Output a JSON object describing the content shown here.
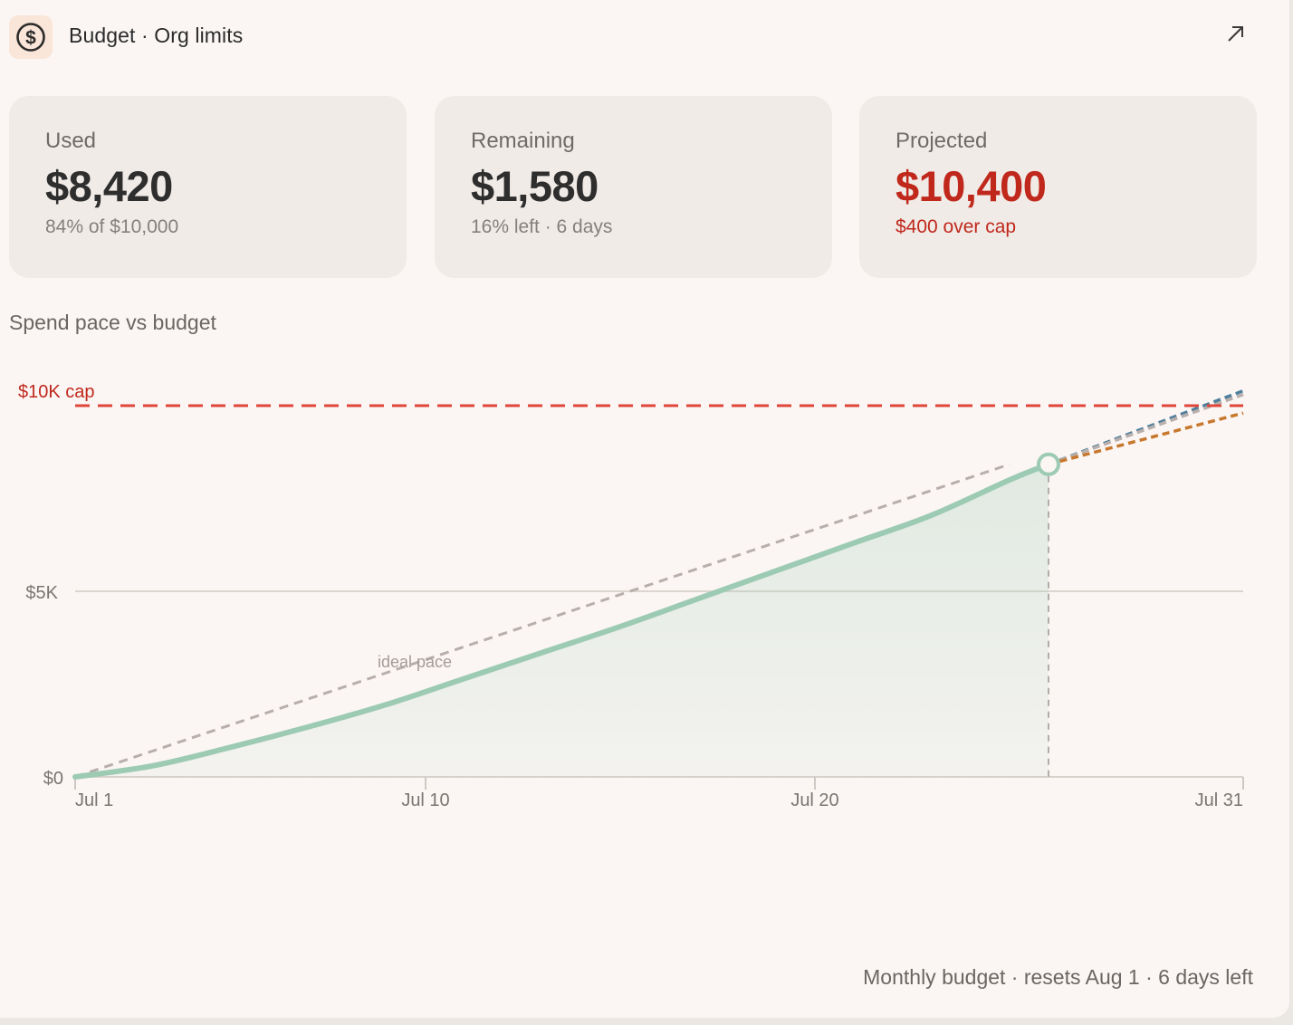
{
  "header": {
    "title": "Budget · Org limits",
    "icon": "dollar-circle-icon",
    "expand_icon": "expand-arrow-icon"
  },
  "stats": [
    {
      "label": "Used",
      "value": "$8,420",
      "sub": "84% of $10,000"
    },
    {
      "label": "Remaining",
      "value": "$1,580",
      "sub": "16% left · 6 days"
    },
    {
      "label": "Projected",
      "value": "$10,400",
      "sub": "$400 over cap"
    }
  ],
  "section_title": "Spend pace vs budget",
  "footer": "Monthly budget · resets Aug 1 · 6 days left",
  "colors": {
    "actual": "#9ccab3",
    "cap": "#e0453a",
    "ideal": "#b8afac",
    "projection_high": "#4f7f9b",
    "projection_low": "#c8782e",
    "danger": "#c0281c"
  },
  "chart_data": {
    "type": "line",
    "title": "",
    "x_ticks": [
      "Jul 1",
      "Jul 10",
      "Jul 20",
      "Jul 31"
    ],
    "y_ticks": [
      "$0",
      "$5K"
    ],
    "ylim": [
      0,
      12000
    ],
    "xlim": [
      1,
      31
    ],
    "cap": {
      "label": "$10K cap",
      "value": 10000
    },
    "ideal_label": "ideal pace",
    "ideal": {
      "x": [
        1,
        25
      ],
      "values": [
        0,
        8420
      ]
    },
    "actual": {
      "x": [
        1,
        3,
        5,
        7,
        9,
        11,
        13,
        15,
        17,
        19,
        21,
        23,
        25
      ],
      "values": [
        0,
        300,
        800,
        1350,
        1950,
        2650,
        3350,
        4050,
        4800,
        5550,
        6300,
        7050,
        8000
      ]
    },
    "today": {
      "x": 26,
      "value": 8420
    },
    "projections": [
      {
        "color_key": "projection_high",
        "x": [
          26,
          31
        ],
        "values": [
          8420,
          10400
        ]
      },
      {
        "color_key": "ideal",
        "x": [
          26,
          31
        ],
        "values": [
          8420,
          10300
        ]
      },
      {
        "color_key": "projection_low",
        "x": [
          26,
          31
        ],
        "values": [
          8420,
          9800
        ]
      }
    ]
  }
}
